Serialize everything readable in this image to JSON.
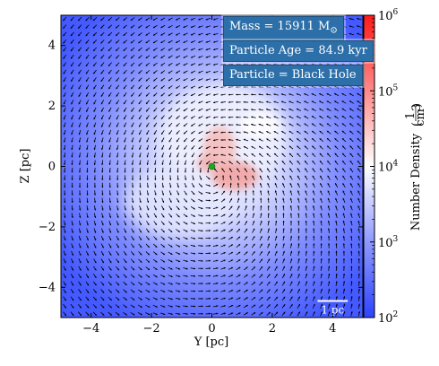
{
  "chart_data": {
    "type": "heatmap",
    "title": "",
    "xlabel": "Y [pc]",
    "ylabel": "Z [pc]",
    "xlim": [
      -5,
      5
    ],
    "ylim": [
      -5,
      5
    ],
    "x_ticks": [
      -4,
      -2,
      0,
      2,
      4
    ],
    "y_ticks": [
      -4,
      -2,
      0,
      2,
      4
    ],
    "x_tick_labels": [
      "−4",
      "−2",
      "0",
      "2",
      "4"
    ],
    "y_tick_labels": [
      "−4",
      "−2",
      "0",
      "2",
      "4"
    ],
    "colorbar": {
      "label": "Number Density",
      "unit_numerator": "1",
      "unit_denominator": "cm",
      "unit_denominator_exp": "3",
      "scale": "log",
      "range": [
        100,
        1000000
      ],
      "ticks": [
        {
          "value": 100,
          "base": "10",
          "exp": "2"
        },
        {
          "value": 1000,
          "base": "10",
          "exp": "3"
        },
        {
          "value": 10000,
          "base": "10",
          "exp": "4"
        },
        {
          "value": 100000,
          "base": "10",
          "exp": "5"
        },
        {
          "value": 1000000,
          "base": "10",
          "exp": "6"
        }
      ],
      "colors": {
        "low": "#2d43ff",
        "mid": "#ffffff",
        "high": "#ff1a1a"
      }
    },
    "particle": {
      "name": "Black Hole",
      "y": 0,
      "z": 0,
      "color": "#1fa81f"
    },
    "velocity_field": "counter-clockwise swirl around origin",
    "annotations": [
      {
        "key": "mass",
        "text": "Mass = 15911 M",
        "subscript": "⊙"
      },
      {
        "key": "age",
        "text": "Particle Age = 84.9 kyr"
      },
      {
        "key": "particle",
        "text": "Particle = Black Hole"
      }
    ],
    "scale_bar": {
      "length_pc": 1,
      "label": "1 pc"
    },
    "annotation_color": "#2d6fa8"
  }
}
